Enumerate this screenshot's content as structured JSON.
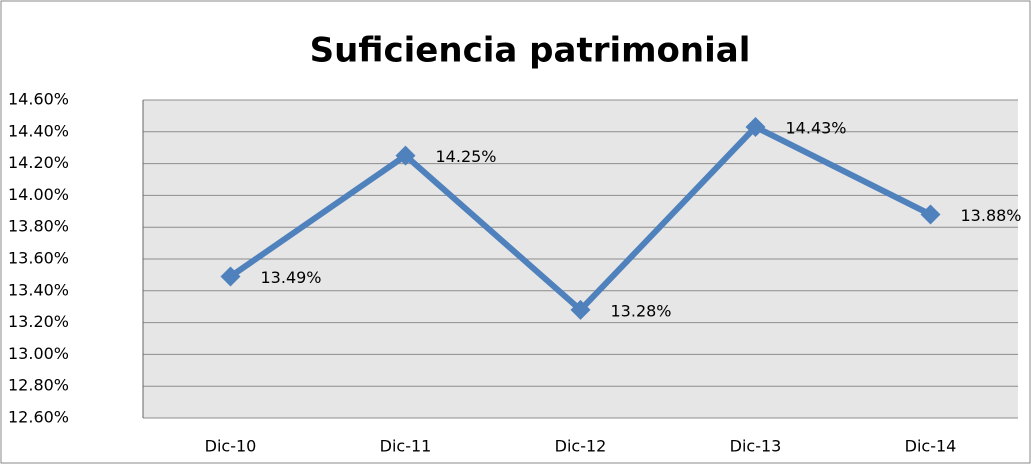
{
  "chart_data": {
    "type": "line",
    "title": "Suficiencia patrimonial",
    "categories": [
      "Dic-10",
      "Dic-11",
      "Dic-12",
      "Dic-13",
      "Dic-14"
    ],
    "series": [
      {
        "name": "Suficiencia patrimonial",
        "color": "#4f81bd",
        "values": [
          13.49,
          14.25,
          13.28,
          14.43,
          13.88
        ],
        "value_labels": [
          "13.49%",
          "14.25%",
          "13.28%",
          "14.43%",
          "13.88%"
        ]
      }
    ],
    "ylim": [
      12.6,
      14.6
    ],
    "yticks": [
      {
        "value": 12.6,
        "label": "12.60%"
      },
      {
        "value": 12.8,
        "label": "12.80%"
      },
      {
        "value": 13.0,
        "label": "13.00%"
      },
      {
        "value": 13.2,
        "label": "13.20%"
      },
      {
        "value": 13.4,
        "label": "13.40%"
      },
      {
        "value": 13.6,
        "label": "13.60%"
      },
      {
        "value": 13.8,
        "label": "13.80%"
      },
      {
        "value": 14.0,
        "label": "14.00%"
      },
      {
        "value": 14.2,
        "label": "14.20%"
      },
      {
        "value": 14.4,
        "label": "14.40%"
      },
      {
        "value": 14.6,
        "label": "14.60%"
      }
    ],
    "grid": true
  }
}
